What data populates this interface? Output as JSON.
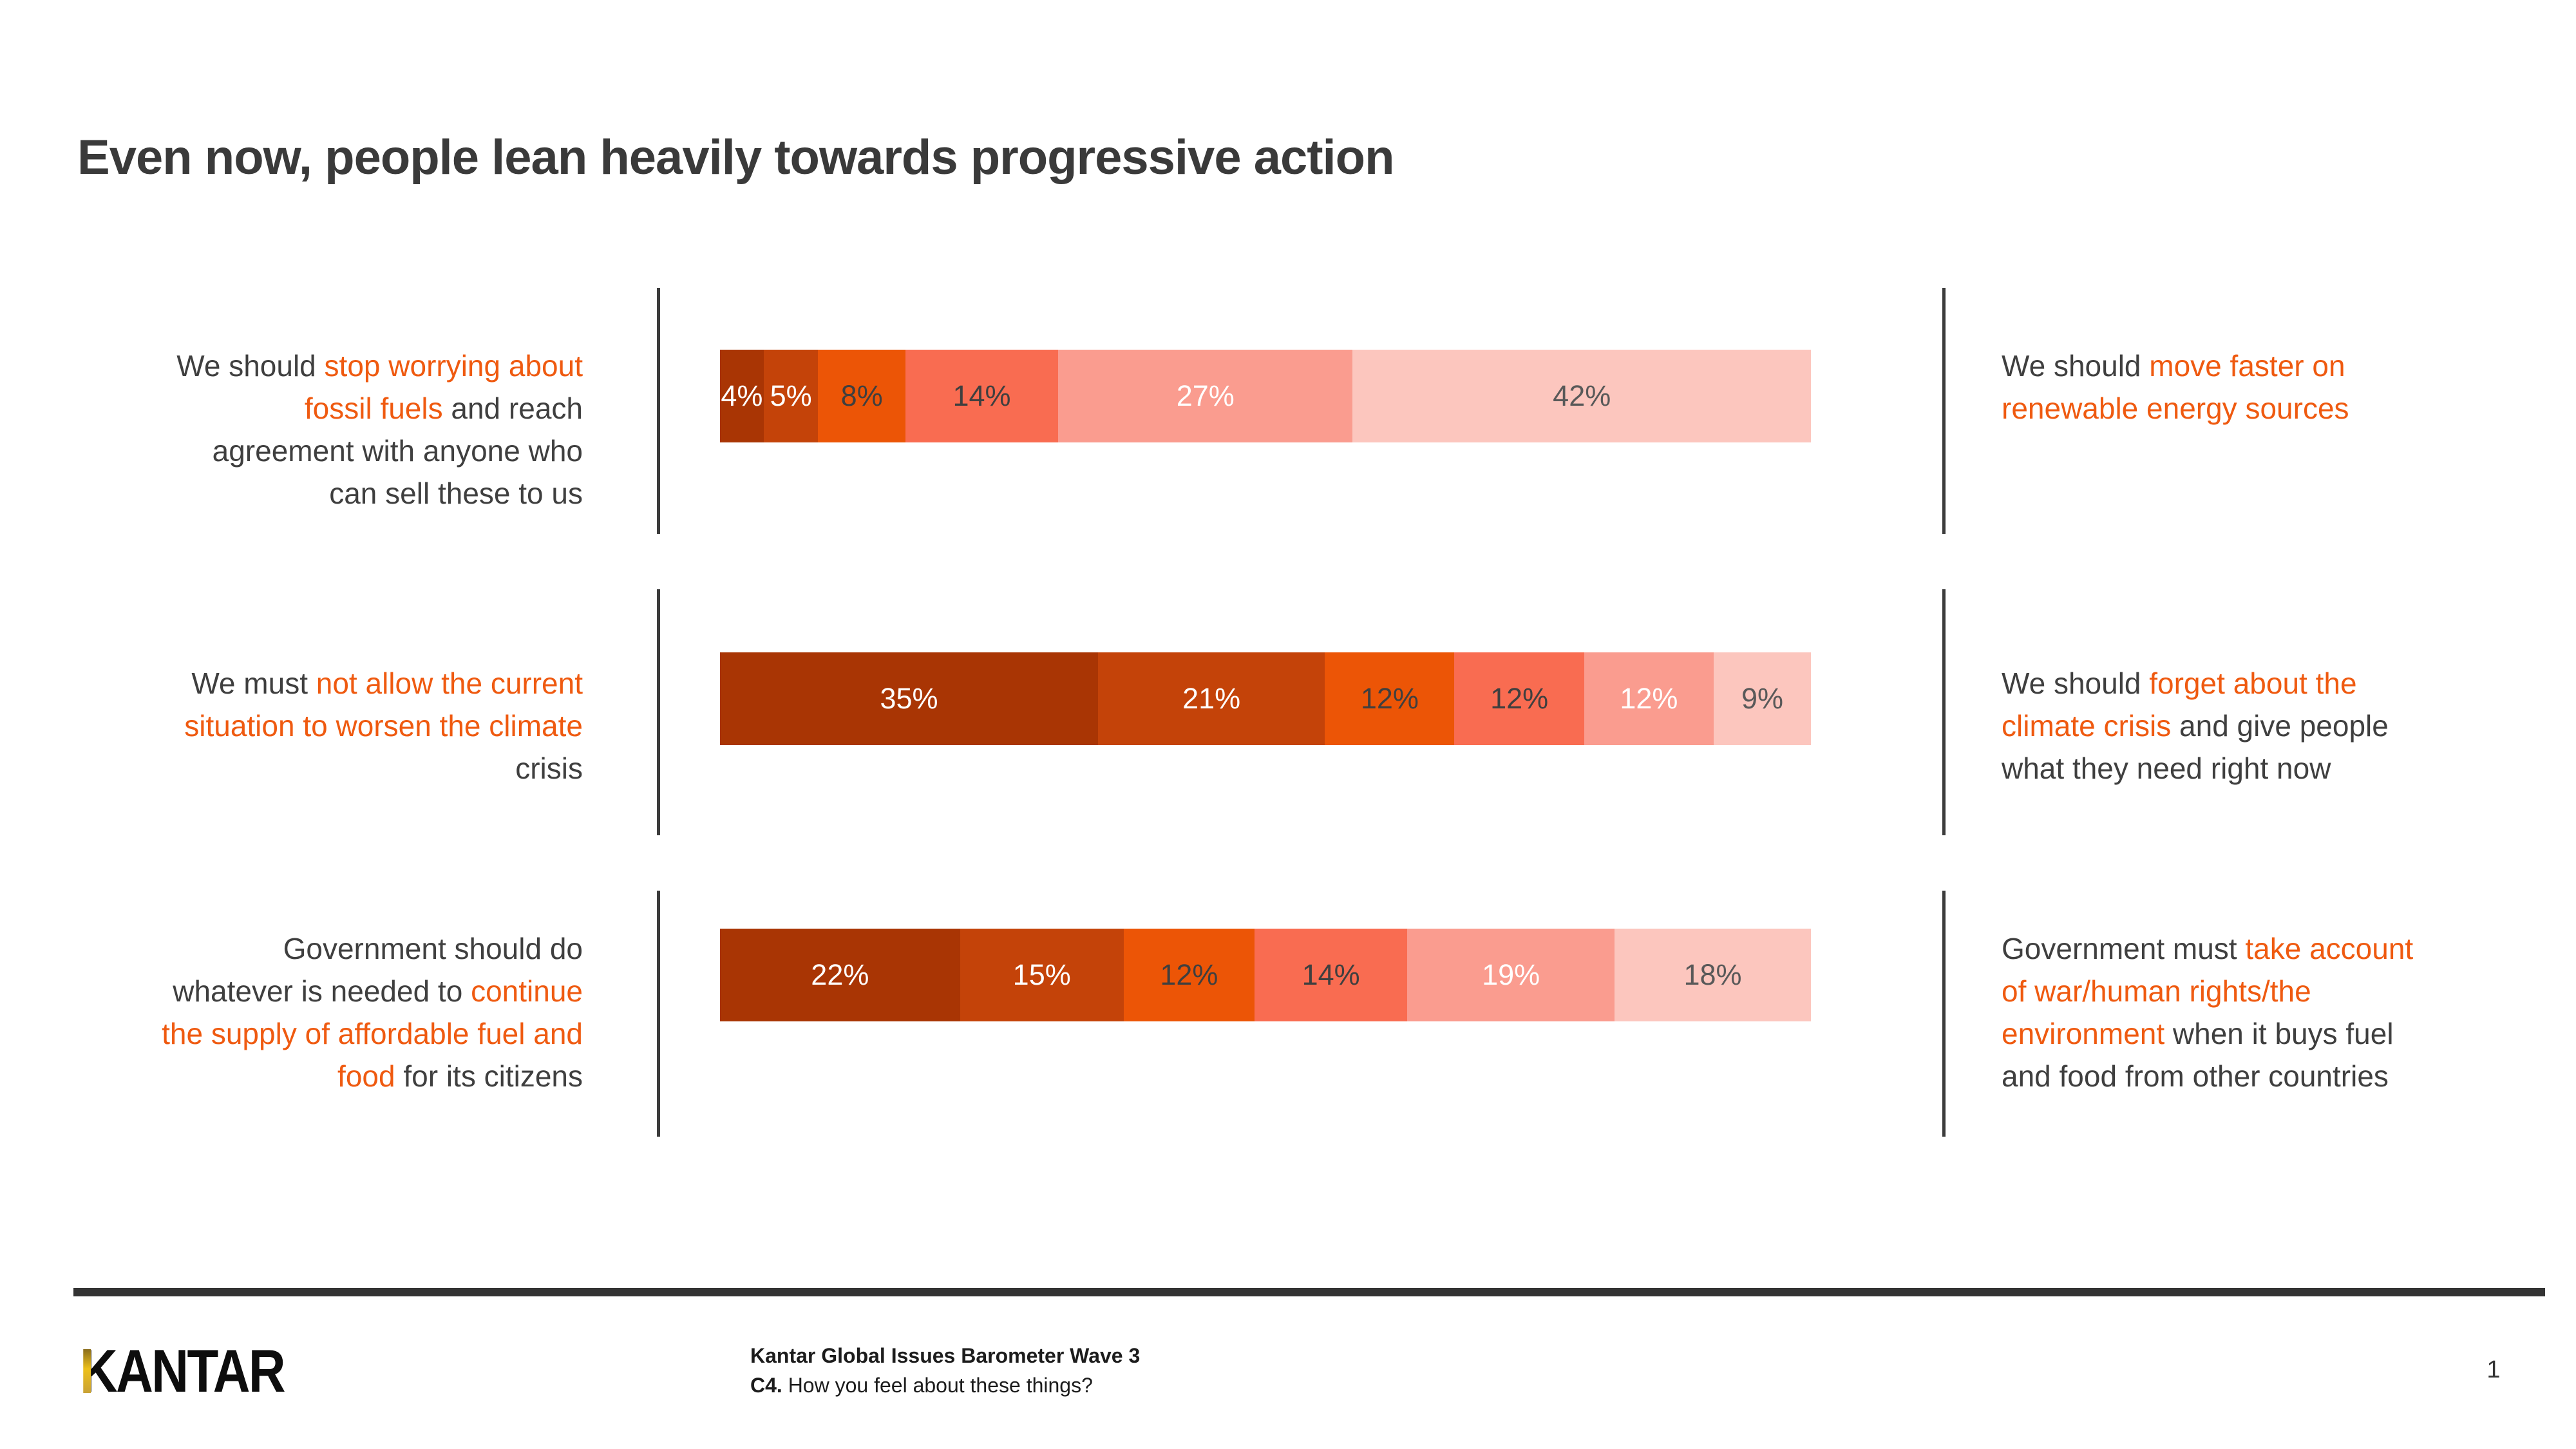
{
  "slide": {
    "title": "Even now, people lean heavily towards progressive action",
    "page_number": "1"
  },
  "footer": {
    "logo_text": "KANTAR",
    "source_line1": "Kantar Global Issues Barometer Wave 3",
    "source_line2_prefix": "C4.",
    "source_line2_rest": " How you feel about these things?"
  },
  "colors": {
    "accent_text_orange": "#ef5a10",
    "statement_dark": "#3f3f3f",
    "title_gray": "#3a3a3a",
    "divider_gray": "#3c3c3c",
    "footer_rule_gray": "#333333",
    "logo_gold": "#d9a713",
    "segment_colors": [
      "#a93504",
      "#c44309",
      "#ec5506",
      "#f96c51",
      "#fa9c8f",
      "#fcc6be"
    ],
    "segment_label_colors": [
      "#ffffff",
      "#ffffff",
      "#3f3f3f",
      "#3f3f3f",
      "#ffffff",
      "#595959"
    ]
  },
  "chart_data": {
    "type": "bar",
    "subtype": "horizontal-stacked",
    "unit": "%",
    "legend": "none",
    "axis": "none (100% stacked agreement scale between two opposing statements, darkest = closest to left statement, lightest = closest to right statement)",
    "rows": [
      {
        "left_lines": [
          [
            {
              "text": "We should ",
              "accent": false
            },
            {
              "text": "stop worrying about",
              "accent": true
            }
          ],
          [
            {
              "text": "fossil fuels",
              "accent": true
            },
            {
              "text": " and reach",
              "accent": false
            }
          ],
          [
            {
              "text": "agreement with anyone who",
              "accent": false
            }
          ],
          [
            {
              "text": "can sell these to us",
              "accent": false
            }
          ]
        ],
        "right_lines": [
          [
            {
              "text": "We should ",
              "accent": false
            },
            {
              "text": "move faster on",
              "accent": true
            }
          ],
          [
            {
              "text": "renewable energy sources",
              "accent": true
            }
          ]
        ],
        "values": [
          4,
          5,
          8,
          14,
          27,
          42
        ],
        "labels": [
          "4%",
          "5%",
          "8%",
          "14%",
          "27%",
          "42%"
        ]
      },
      {
        "left_lines": [
          [
            {
              "text": "We must ",
              "accent": false
            },
            {
              "text": "not allow the current",
              "accent": true
            }
          ],
          [
            {
              "text": "situation to worsen the climate",
              "accent": true
            }
          ],
          [
            {
              "text": "crisis",
              "accent": false
            }
          ]
        ],
        "right_lines": [
          [
            {
              "text": "We should ",
              "accent": false
            },
            {
              "text": "forget about the",
              "accent": true
            }
          ],
          [
            {
              "text": "climate crisis",
              "accent": true
            },
            {
              "text": " and give people",
              "accent": false
            }
          ],
          [
            {
              "text": "what they need right now",
              "accent": false
            }
          ]
        ],
        "values": [
          35,
          21,
          12,
          12,
          12,
          9
        ],
        "labels": [
          "35%",
          "21%",
          "12%",
          "12%",
          "12%",
          "9%"
        ]
      },
      {
        "left_lines": [
          [
            {
              "text": "Government should do",
              "accent": false
            }
          ],
          [
            {
              "text": "whatever is needed to ",
              "accent": false
            },
            {
              "text": "continue",
              "accent": true
            }
          ],
          [
            {
              "text": "the supply of affordable fuel and",
              "accent": true
            }
          ],
          [
            {
              "text": "food",
              "accent": true
            },
            {
              "text": " for its citizens",
              "accent": false
            }
          ]
        ],
        "right_lines": [
          [
            {
              "text": "Government must ",
              "accent": false
            },
            {
              "text": "take account",
              "accent": true
            }
          ],
          [
            {
              "text": "of war/human rights/the",
              "accent": true
            }
          ],
          [
            {
              "text": "environment",
              "accent": true
            },
            {
              "text": " when it buys fuel",
              "accent": false
            }
          ],
          [
            {
              "text": "and food from other countries",
              "accent": false
            }
          ]
        ],
        "values": [
          22,
          15,
          12,
          14,
          19,
          18
        ],
        "labels": [
          "22%",
          "15%",
          "12%",
          "14%",
          "19%",
          "18%"
        ]
      }
    ]
  }
}
